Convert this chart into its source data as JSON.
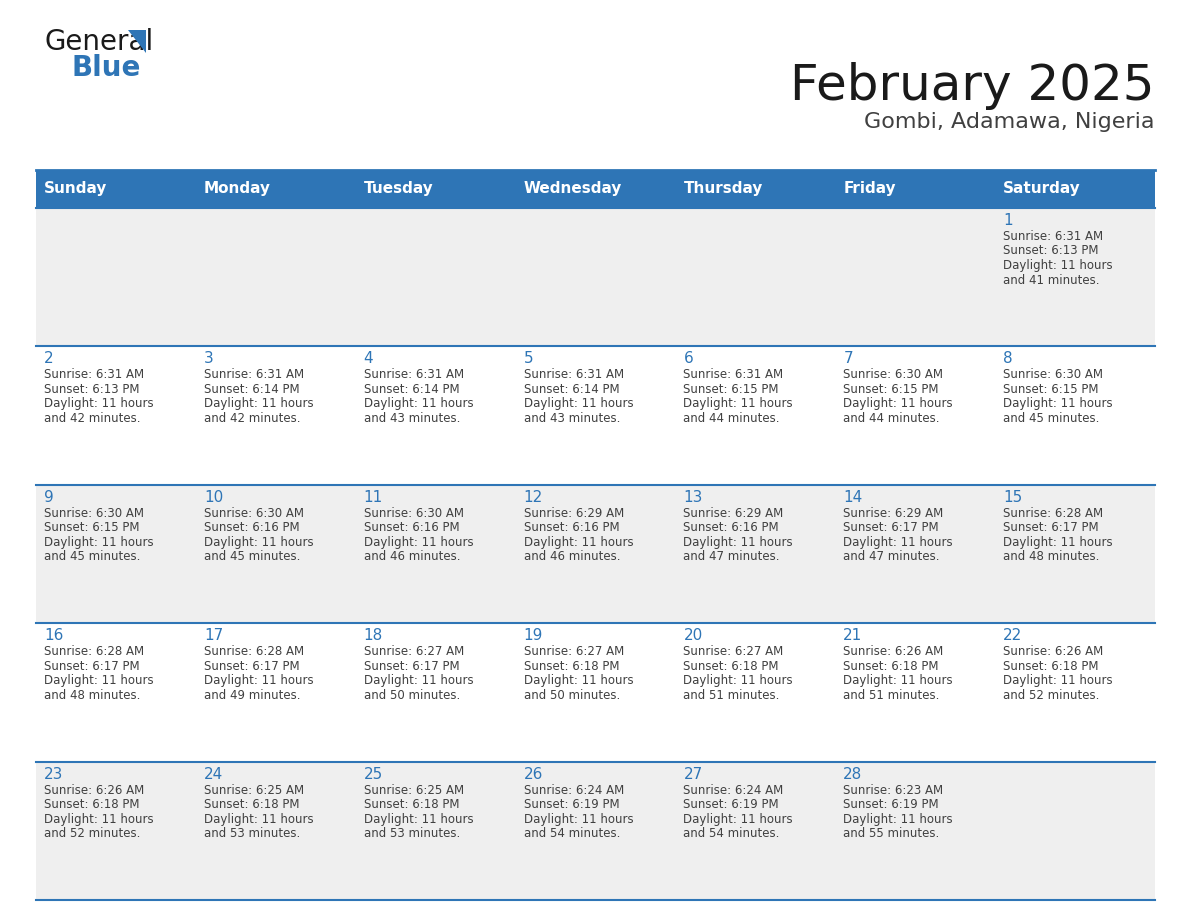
{
  "title": "February 2025",
  "subtitle": "Gombi, Adamawa, Nigeria",
  "header_bg_color": "#2E75B6",
  "header_text_color": "#FFFFFF",
  "row_bg_even": "#FFFFFF",
  "row_bg_odd": "#EFEFEF",
  "border_color": "#2E75B6",
  "text_color": "#404040",
  "day_num_color": "#2E75B6",
  "day_headers": [
    "Sunday",
    "Monday",
    "Tuesday",
    "Wednesday",
    "Thursday",
    "Friday",
    "Saturday"
  ],
  "days": [
    {
      "day": 1,
      "col": 6,
      "row": 0,
      "sunrise": "6:31 AM",
      "sunset": "6:13 PM",
      "daylight_min": "41"
    },
    {
      "day": 2,
      "col": 0,
      "row": 1,
      "sunrise": "6:31 AM",
      "sunset": "6:13 PM",
      "daylight_min": "42"
    },
    {
      "day": 3,
      "col": 1,
      "row": 1,
      "sunrise": "6:31 AM",
      "sunset": "6:14 PM",
      "daylight_min": "42"
    },
    {
      "day": 4,
      "col": 2,
      "row": 1,
      "sunrise": "6:31 AM",
      "sunset": "6:14 PM",
      "daylight_min": "43"
    },
    {
      "day": 5,
      "col": 3,
      "row": 1,
      "sunrise": "6:31 AM",
      "sunset": "6:14 PM",
      "daylight_min": "43"
    },
    {
      "day": 6,
      "col": 4,
      "row": 1,
      "sunrise": "6:31 AM",
      "sunset": "6:15 PM",
      "daylight_min": "44"
    },
    {
      "day": 7,
      "col": 5,
      "row": 1,
      "sunrise": "6:30 AM",
      "sunset": "6:15 PM",
      "daylight_min": "44"
    },
    {
      "day": 8,
      "col": 6,
      "row": 1,
      "sunrise": "6:30 AM",
      "sunset": "6:15 PM",
      "daylight_min": "45"
    },
    {
      "day": 9,
      "col": 0,
      "row": 2,
      "sunrise": "6:30 AM",
      "sunset": "6:15 PM",
      "daylight_min": "45"
    },
    {
      "day": 10,
      "col": 1,
      "row": 2,
      "sunrise": "6:30 AM",
      "sunset": "6:16 PM",
      "daylight_min": "45"
    },
    {
      "day": 11,
      "col": 2,
      "row": 2,
      "sunrise": "6:30 AM",
      "sunset": "6:16 PM",
      "daylight_min": "46"
    },
    {
      "day": 12,
      "col": 3,
      "row": 2,
      "sunrise": "6:29 AM",
      "sunset": "6:16 PM",
      "daylight_min": "46"
    },
    {
      "day": 13,
      "col": 4,
      "row": 2,
      "sunrise": "6:29 AM",
      "sunset": "6:16 PM",
      "daylight_min": "47"
    },
    {
      "day": 14,
      "col": 5,
      "row": 2,
      "sunrise": "6:29 AM",
      "sunset": "6:17 PM",
      "daylight_min": "47"
    },
    {
      "day": 15,
      "col": 6,
      "row": 2,
      "sunrise": "6:28 AM",
      "sunset": "6:17 PM",
      "daylight_min": "48"
    },
    {
      "day": 16,
      "col": 0,
      "row": 3,
      "sunrise": "6:28 AM",
      "sunset": "6:17 PM",
      "daylight_min": "48"
    },
    {
      "day": 17,
      "col": 1,
      "row": 3,
      "sunrise": "6:28 AM",
      "sunset": "6:17 PM",
      "daylight_min": "49"
    },
    {
      "day": 18,
      "col": 2,
      "row": 3,
      "sunrise": "6:27 AM",
      "sunset": "6:17 PM",
      "daylight_min": "50"
    },
    {
      "day": 19,
      "col": 3,
      "row": 3,
      "sunrise": "6:27 AM",
      "sunset": "6:18 PM",
      "daylight_min": "50"
    },
    {
      "day": 20,
      "col": 4,
      "row": 3,
      "sunrise": "6:27 AM",
      "sunset": "6:18 PM",
      "daylight_min": "51"
    },
    {
      "day": 21,
      "col": 5,
      "row": 3,
      "sunrise": "6:26 AM",
      "sunset": "6:18 PM",
      "daylight_min": "51"
    },
    {
      "day": 22,
      "col": 6,
      "row": 3,
      "sunrise": "6:26 AM",
      "sunset": "6:18 PM",
      "daylight_min": "52"
    },
    {
      "day": 23,
      "col": 0,
      "row": 4,
      "sunrise": "6:26 AM",
      "sunset": "6:18 PM",
      "daylight_min": "52"
    },
    {
      "day": 24,
      "col": 1,
      "row": 4,
      "sunrise": "6:25 AM",
      "sunset": "6:18 PM",
      "daylight_min": "53"
    },
    {
      "day": 25,
      "col": 2,
      "row": 4,
      "sunrise": "6:25 AM",
      "sunset": "6:18 PM",
      "daylight_min": "53"
    },
    {
      "day": 26,
      "col": 3,
      "row": 4,
      "sunrise": "6:24 AM",
      "sunset": "6:19 PM",
      "daylight_min": "54"
    },
    {
      "day": 27,
      "col": 4,
      "row": 4,
      "sunrise": "6:24 AM",
      "sunset": "6:19 PM",
      "daylight_min": "54"
    },
    {
      "day": 28,
      "col": 5,
      "row": 4,
      "sunrise": "6:23 AM",
      "sunset": "6:19 PM",
      "daylight_min": "55"
    }
  ],
  "num_rows": 5,
  "num_cols": 7,
  "logo_text_general": "General",
  "logo_text_blue": "Blue",
  "logo_triangle_color": "#2E75B6",
  "logo_general_color": "#1a1a1a"
}
